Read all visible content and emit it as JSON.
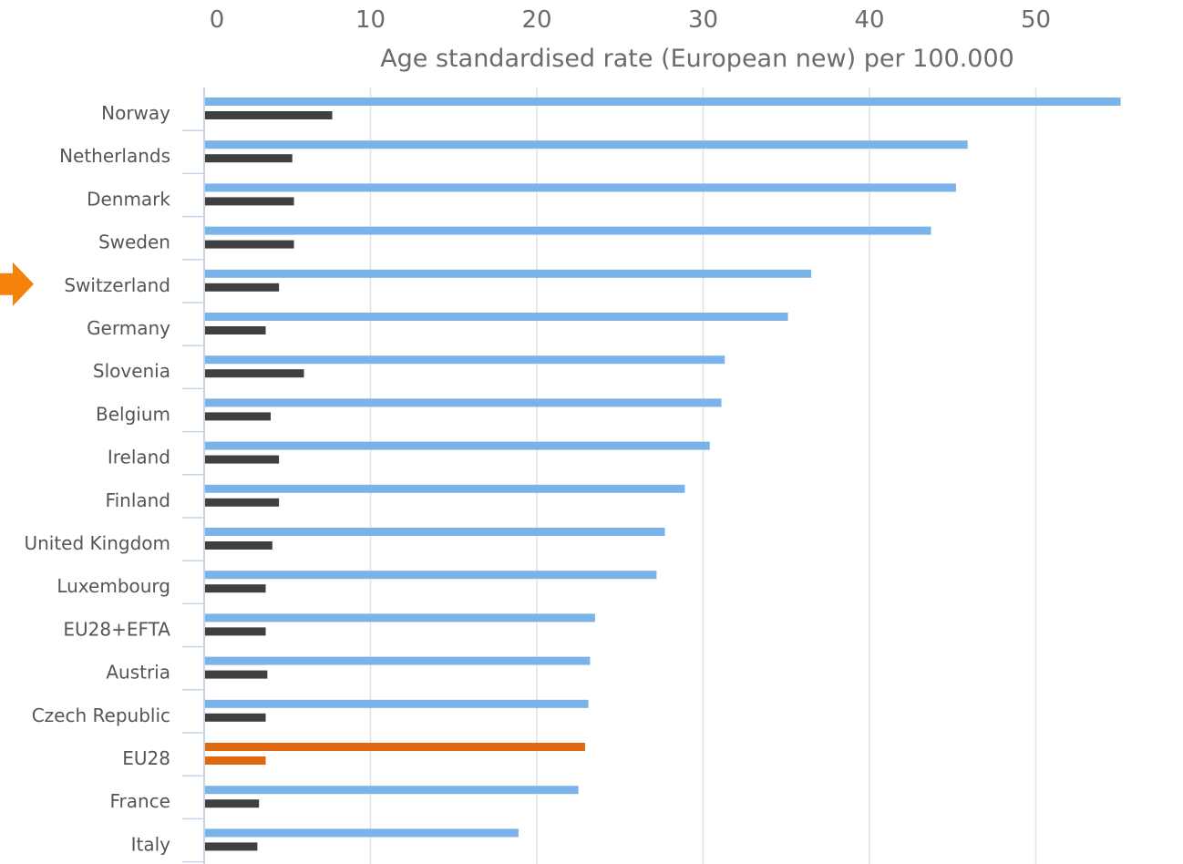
{
  "chart_data": {
    "type": "bar",
    "orientation": "horizontal",
    "xlabel": "Age standardised rate (European new) per 100.000",
    "xlim": [
      0,
      60
    ],
    "xticks": [
      "0",
      "10",
      "20",
      "30",
      "40",
      "50",
      "60"
    ],
    "axis_position": "top",
    "grid": true,
    "highlight_marker": "Switzerland",
    "categories": [
      "Norway",
      "Netherlands",
      "Denmark",
      "Sweden",
      "Switzerland",
      "Germany",
      "Slovenia",
      "Belgium",
      "Ireland",
      "Finland",
      "United Kingdom",
      "Luxembourg",
      "EU28+EFTA",
      "Austria",
      "Czech Republic",
      "EU28",
      "France",
      "Italy"
    ],
    "highlight_category": "EU28",
    "series": [
      {
        "values": [
          55.1,
          45.9,
          45.2,
          43.7,
          36.5,
          35.1,
          31.3,
          31.1,
          30.4,
          28.9,
          27.7,
          27.2,
          23.5,
          23.2,
          23.1,
          22.9,
          22.5,
          18.9
        ]
      },
      {
        "values": [
          7.7,
          5.3,
          5.4,
          5.4,
          4.5,
          3.7,
          6.0,
          4.0,
          4.5,
          4.5,
          4.1,
          3.7,
          3.7,
          3.8,
          3.7,
          3.7,
          3.3,
          3.2
        ]
      }
    ],
    "colors": {
      "series_1": "#7ab3ea",
      "series_2": "#404040",
      "highlight": "#e0690f",
      "marker": "#f5820d",
      "grid": "#e2e2e2",
      "axis": "#c5d3e8"
    }
  }
}
